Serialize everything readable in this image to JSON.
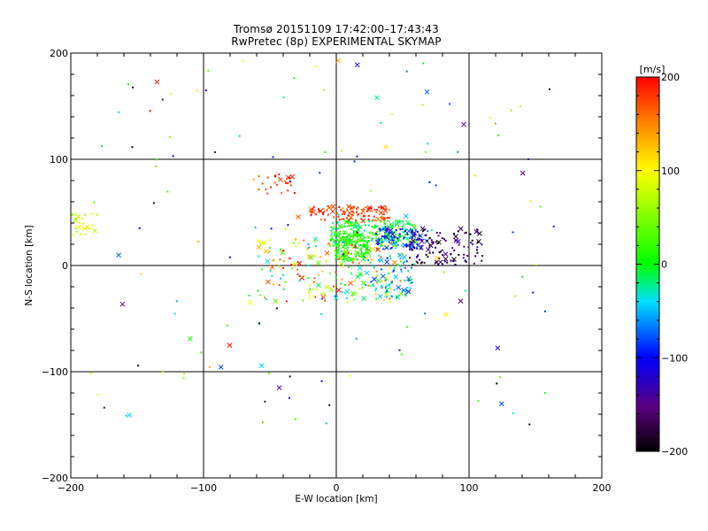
{
  "chart_data": {
    "type": "scatter",
    "title": "Tromsø 20151109 17:42:00–17:43:43",
    "subtitle": "RwPretec (8p) EXPERIMENTAL SKYMAP",
    "xlabel": "E-W location [km]",
    "ylabel": "N-S location [km]",
    "xlim": [
      -200,
      200
    ],
    "ylim": [
      -200,
      200
    ],
    "x_ticks": [
      -200,
      -100,
      0,
      100,
      200
    ],
    "y_ticks": [
      -200,
      -100,
      0,
      100,
      200
    ],
    "grid": true,
    "grid_lines_x": [
      -100,
      0,
      100
    ],
    "grid_lines_y": [
      -100,
      0,
      100
    ],
    "colorbar": {
      "label": "[m/s]",
      "min": -200,
      "max": 200,
      "ticks": [
        200,
        100,
        0,
        -100,
        -200
      ],
      "colormap": "rainbow (black → purple → blue → cyan → green → yellow → red)"
    },
    "markers": [
      "dot",
      "x"
    ],
    "clusters": [
      {
        "x_range": [
          -20,
          40
        ],
        "y_range": [
          42,
          56
        ],
        "velocity_range": [
          150,
          200
        ],
        "count": 110
      },
      {
        "x_range": [
          -5,
          60
        ],
        "y_range": [
          18,
          42
        ],
        "velocity_range": [
          -40,
          40
        ],
        "count": 220
      },
      {
        "x_range": [
          0,
          25
        ],
        "y_range": [
          5,
          30
        ],
        "velocity_range": [
          -10,
          30
        ],
        "count": 130
      },
      {
        "x_range": [
          30,
          70
        ],
        "y_range": [
          15,
          35
        ],
        "velocity_range": [
          -130,
          -60
        ],
        "count": 90
      },
      {
        "x_range": [
          55,
          110
        ],
        "y_range": [
          0,
          35
        ],
        "velocity_range": [
          -210,
          -120
        ],
        "count": 110
      },
      {
        "x_range": [
          -60,
          -30
        ],
        "y_range": [
          65,
          85
        ],
        "velocity_range": [
          160,
          200
        ],
        "count": 25
      },
      {
        "x_range": [
          -200,
          -180
        ],
        "y_range": [
          28,
          50
        ],
        "velocity_range": [
          40,
          110
        ],
        "count": 25
      },
      {
        "x_range": [
          -60,
          50
        ],
        "y_range": [
          -35,
          25
        ],
        "velocity_range": [
          -60,
          200
        ],
        "count": 200
      },
      {
        "x_range": [
          20,
          60
        ],
        "y_range": [
          -30,
          10
        ],
        "velocity_range": [
          -100,
          0
        ],
        "count": 70
      },
      {
        "x_range": [
          -200,
          165
        ],
        "y_range": [
          -150,
          200
        ],
        "velocity_range": [
          -200,
          200
        ],
        "count": 150
      }
    ]
  }
}
